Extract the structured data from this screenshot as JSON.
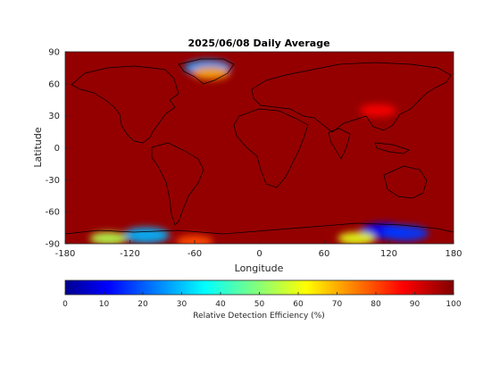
{
  "chart_data": {
    "type": "heatmap",
    "title": "2025/06/08 Daily Average",
    "xlabel": "Longitude",
    "ylabel": "Latitude",
    "xlim": [
      -180,
      180
    ],
    "ylim": [
      -90,
      90
    ],
    "xticks": [
      -180,
      -120,
      -60,
      0,
      60,
      120,
      180
    ],
    "yticks": [
      90,
      60,
      30,
      0,
      -30,
      -60,
      -90
    ],
    "colorbar": {
      "label": "Relative Detection Efficiency (%)",
      "range": [
        0,
        100
      ],
      "ticks": [
        0,
        10,
        20,
        30,
        40,
        50,
        60,
        70,
        80,
        90,
        100
      ],
      "colormap": "jet",
      "placement": "bottom"
    },
    "background_value": 98,
    "regions": [
      {
        "lon": -48,
        "lat": 75,
        "value": 28
      },
      {
        "lon": -45,
        "lat": 70,
        "value": 72
      },
      {
        "lon": 110,
        "lat": 35,
        "value": 88
      },
      {
        "lon": 115,
        "lat": -78,
        "value": 12
      },
      {
        "lon": 135,
        "lat": -80,
        "value": 18
      },
      {
        "lon": 90,
        "lat": -85,
        "value": 60
      },
      {
        "lon": -105,
        "lat": -82,
        "value": 30
      },
      {
        "lon": -140,
        "lat": -85,
        "value": 55
      },
      {
        "lon": -60,
        "lat": -88,
        "value": 80
      }
    ]
  }
}
